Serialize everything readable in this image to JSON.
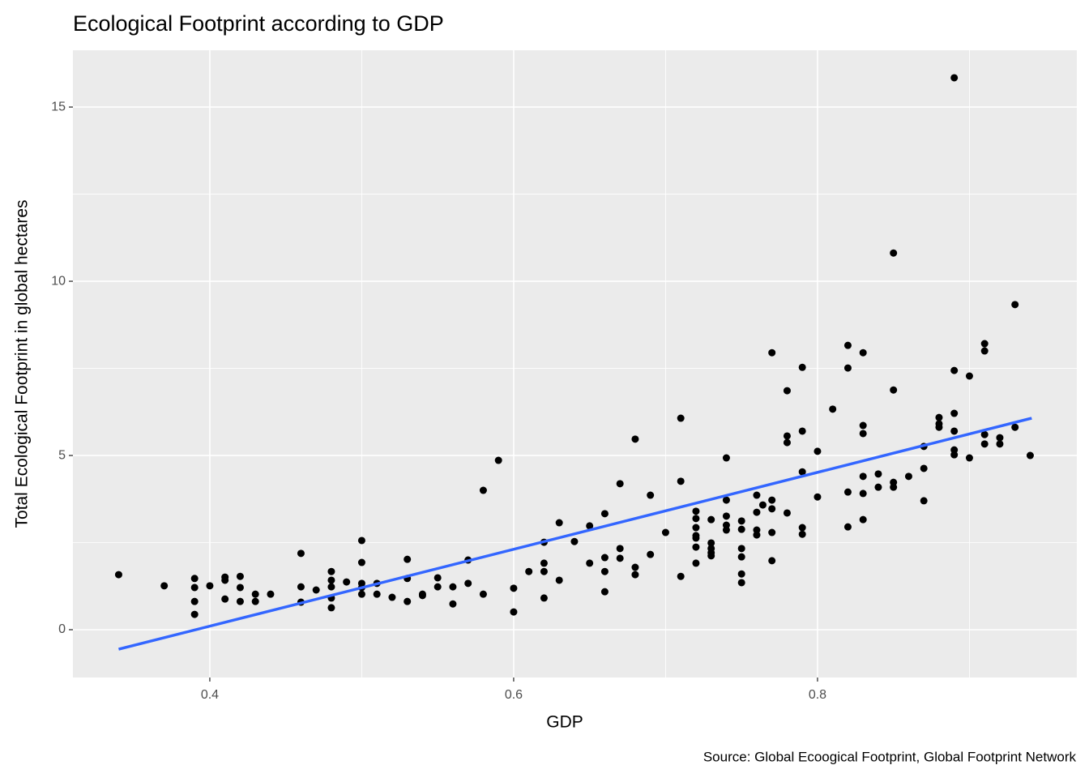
{
  "chart_data": {
    "type": "scatter",
    "title": "Ecological Footprint according to GDP",
    "x_label": "GDP",
    "y_label": "Total Ecological Footprint in global hectares",
    "caption": "Source: Global Ecoogical Footprint, Global Footprint Network",
    "color": "#000000",
    "x": [
      0.34,
      0.37,
      0.39,
      0.39,
      0.39,
      0.39,
      0.4,
      0.41,
      0.41,
      0.41,
      0.42,
      0.42,
      0.42,
      0.43,
      0.43,
      0.44,
      0.46,
      0.46,
      0.46,
      0.47,
      0.48,
      0.48,
      0.48,
      0.48,
      0.48,
      0.49,
      0.5,
      0.5,
      0.5,
      0.5,
      0.5,
      0.51,
      0.51,
      0.52,
      0.53,
      0.53,
      0.53,
      0.54,
      0.54,
      0.55,
      0.55,
      0.56,
      0.56,
      0.57,
      0.57,
      0.58,
      0.58,
      0.59,
      0.6,
      0.6,
      0.61,
      0.62,
      0.62,
      0.62,
      0.62,
      0.63,
      0.63,
      0.64,
      0.65,
      0.65,
      0.66,
      0.66,
      0.66,
      0.66,
      0.67,
      0.67,
      0.67,
      0.68,
      0.68,
      0.68,
      0.69,
      0.69,
      0.7,
      0.71,
      0.71,
      0.71,
      0.72,
      0.72,
      0.72,
      0.72,
      0.72,
      0.72,
      0.72,
      0.73,
      0.73,
      0.73,
      0.73,
      0.73,
      0.74,
      0.74,
      0.74,
      0.74,
      0.74,
      0.75,
      0.75,
      0.75,
      0.75,
      0.75,
      0.75,
      0.76,
      0.76,
      0.76,
      0.76,
      0.764,
      0.77,
      0.77,
      0.77,
      0.77,
      0.77,
      0.78,
      0.78,
      0.78,
      0.78,
      0.79,
      0.79,
      0.79,
      0.79,
      0.79,
      0.8,
      0.8,
      0.81,
      0.82,
      0.82,
      0.82,
      0.82,
      0.83,
      0.83,
      0.83,
      0.83,
      0.83,
      0.83,
      0.84,
      0.84,
      0.85,
      0.85,
      0.85,
      0.85,
      0.86,
      0.87,
      0.87,
      0.87,
      0.88,
      0.88,
      0.88,
      0.89,
      0.89,
      0.89,
      0.89,
      0.89,
      0.89,
      0.9,
      0.9,
      0.91,
      0.91,
      0.91,
      0.91,
      0.92,
      0.92,
      0.93,
      0.93,
      0.94
    ],
    "values": [
      1.58,
      1.26,
      1.47,
      1.21,
      0.81,
      0.44,
      1.26,
      1.51,
      1.42,
      0.88,
      1.53,
      1.21,
      0.81,
      1.02,
      0.81,
      1.02,
      2.19,
      1.23,
      0.79,
      1.14,
      1.67,
      1.42,
      1.23,
      0.91,
      0.63,
      1.37,
      2.56,
      1.93,
      1.33,
      1.21,
      1.02,
      1.33,
      1.02,
      0.93,
      2.02,
      1.47,
      0.81,
      1.02,
      0.98,
      1.49,
      1.23,
      1.23,
      0.74,
      2.0,
      1.33,
      4.0,
      1.02,
      4.86,
      1.19,
      0.51,
      1.67,
      2.51,
      1.91,
      1.67,
      0.91,
      3.07,
      1.42,
      2.53,
      2.98,
      1.91,
      3.33,
      2.07,
      1.67,
      1.09,
      4.19,
      2.33,
      2.05,
      5.47,
      1.79,
      1.58,
      3.86,
      2.16,
      2.79,
      6.07,
      4.26,
      1.53,
      3.4,
      3.19,
      2.93,
      2.7,
      2.63,
      2.37,
      1.91,
      3.16,
      2.49,
      2.33,
      2.21,
      2.12,
      4.93,
      3.72,
      3.26,
      3.0,
      2.86,
      3.12,
      2.88,
      2.33,
      2.09,
      1.6,
      1.35,
      3.86,
      3.37,
      2.86,
      2.72,
      3.58,
      7.95,
      3.72,
      3.47,
      2.79,
      1.98,
      6.86,
      5.56,
      5.37,
      3.35,
      7.53,
      5.7,
      4.53,
      2.93,
      2.74,
      5.12,
      3.81,
      6.33,
      8.16,
      7.51,
      3.95,
      2.95,
      7.95,
      5.86,
      5.63,
      4.4,
      3.91,
      3.16,
      4.47,
      4.09,
      10.81,
      6.88,
      4.23,
      4.09,
      4.4,
      5.26,
      4.63,
      3.7,
      6.09,
      5.91,
      5.81,
      15.84,
      7.44,
      6.21,
      5.7,
      5.16,
      5.02,
      7.28,
      4.93,
      8.21,
      8.0,
      5.6,
      5.33,
      5.51,
      5.33,
      9.33,
      5.81,
      5.0
    ],
    "trend": {
      "x": [
        0.34,
        0.941
      ],
      "values": [
        -0.56,
        6.07
      ],
      "color": "#3366ff"
    },
    "xlim": [
      0.3099,
      0.9707
    ],
    "ylim": [
      -1.372,
      16.63
    ],
    "xticks": [
      0.4,
      0.6,
      0.8
    ],
    "yticks": [
      0,
      5,
      10,
      15
    ],
    "x_minor_grid": [
      0.5,
      0.7,
      0.9
    ],
    "y_minor_grid": [
      2.5,
      7.5,
      12.5
    ]
  }
}
